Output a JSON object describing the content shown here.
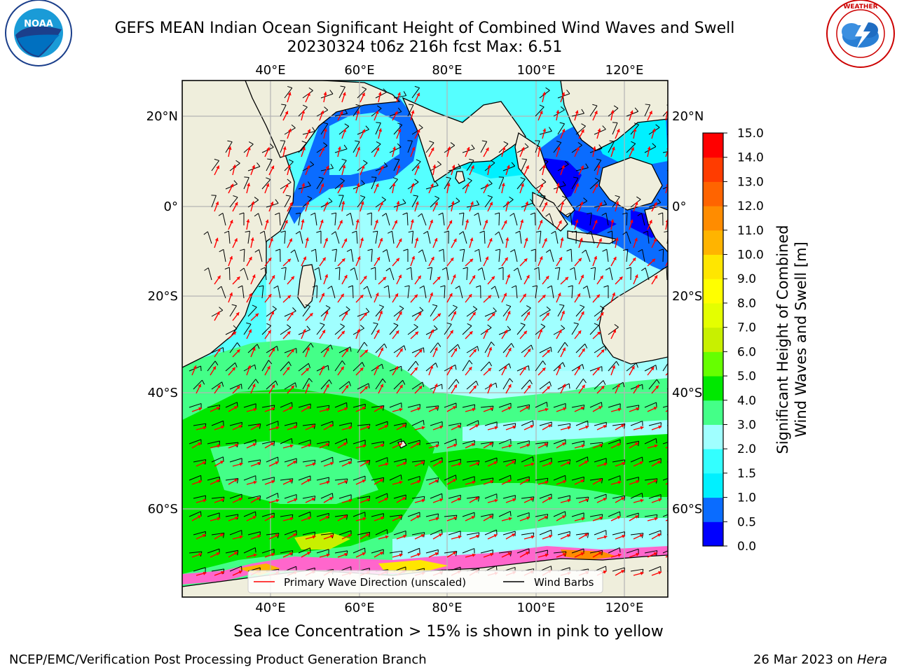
{
  "title": {
    "line1": "GEFS MEAN Indian Ocean Significant Height of Combined Wind Waves and Swell",
    "line2": "20230324 t06z 216h fcst   Max: 6.51"
  },
  "logos": {
    "left": {
      "icon": "noaa-logo",
      "text": "NOAA",
      "ring_text": "NATIONAL OCEANIC AND ATMOSPHERIC ADMINISTRATION · U.S. DEPARTMENT OF COMMERCE"
    },
    "right": {
      "icon": "nws-logo",
      "ring_text": "NATIONAL WEATHER SERVICE"
    }
  },
  "axes": {
    "lon_ticks": [
      "40°E",
      "60°E",
      "80°E",
      "100°E",
      "120°E"
    ],
    "lat_ticks": [
      "20°N",
      "0°",
      "20°S",
      "40°S",
      "60°S"
    ]
  },
  "legend": {
    "wave_label": "Primary Wave Direction (unscaled)",
    "wind_label": "Wind Barbs",
    "wave_color": "#ff0000",
    "wind_color": "#000000"
  },
  "colorbar": {
    "label_line1": "Significant Height of Combined",
    "label_line2": "Wind Waves and Swell [m]",
    "ticks": [
      "0.0",
      "0.5",
      "1.0",
      "1.5",
      "2.0",
      "3.0",
      "4.0",
      "5.0",
      "6.0",
      "7.0",
      "8.0",
      "9.0",
      "10.0",
      "11.0",
      "12.0",
      "13.0",
      "14.0",
      "15.0"
    ],
    "colors": [
      "#0000ff",
      "#0a6cff",
      "#00f0ff",
      "#33ffff",
      "#a0ffff",
      "#44ff88",
      "#00e800",
      "#66ff00",
      "#c8f000",
      "#e4ff00",
      "#ffff00",
      "#ffe600",
      "#ffb400",
      "#ff8c00",
      "#ff6400",
      "#ff3c00",
      "#ff0000"
    ]
  },
  "colors": {
    "land": "#efeedc",
    "ocean_default": "#b0ffff",
    "sea_ice": "#ff66cc",
    "grid": "#b4b4b4"
  },
  "caption": "Sea Ice Concentration > 15% is shown in pink to yellow",
  "credit": "NCEP/EMC/Verification Post Processing Product Generation Branch",
  "date": {
    "text": "26 Mar 2023 on ",
    "machine": "Hera"
  }
}
